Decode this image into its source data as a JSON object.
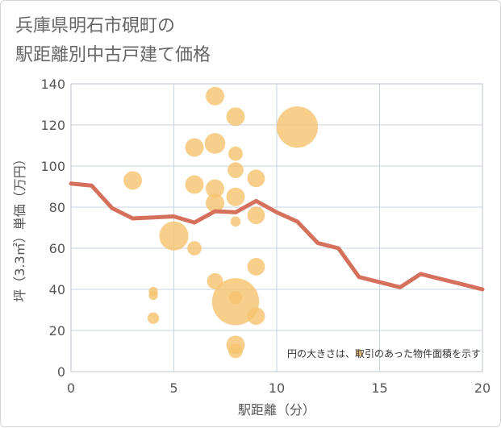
{
  "title": {
    "line1": "兵庫県明石市硯町の",
    "line2": "駅距離別中古戸建て価格"
  },
  "note": "円の大きさは、取引のあった物件面積を示す",
  "colors": {
    "bubble": "#f5c36e",
    "line": "#d4705c",
    "grid": "#c9d3e0",
    "plot_border": "#b8c4d2"
  },
  "chart_data": {
    "type": "scatter",
    "xlabel": "駅距離（分）",
    "ylabel": "坪（3.3㎡）単価（万円）",
    "xlim": [
      0,
      20
    ],
    "ylim": [
      0,
      140
    ],
    "x_ticks": [
      "0",
      "5",
      "10",
      "15",
      "20"
    ],
    "y_ticks": [
      "0",
      "20",
      "40",
      "60",
      "80",
      "100",
      "120",
      "140"
    ],
    "bubbles": [
      {
        "x": 3,
        "y": 93,
        "size": 2
      },
      {
        "x": 4,
        "y": 39,
        "size": 0.5
      },
      {
        "x": 4,
        "y": 37,
        "size": 0.5
      },
      {
        "x": 4,
        "y": 26,
        "size": 0.8
      },
      {
        "x": 5,
        "y": 66,
        "size": 5
      },
      {
        "x": 6,
        "y": 109,
        "size": 2
      },
      {
        "x": 6,
        "y": 91,
        "size": 2
      },
      {
        "x": 6,
        "y": 60,
        "size": 1.2
      },
      {
        "x": 7,
        "y": 134,
        "size": 2
      },
      {
        "x": 7,
        "y": 111,
        "size": 2.5
      },
      {
        "x": 7,
        "y": 89,
        "size": 2
      },
      {
        "x": 7,
        "y": 82,
        "size": 2
      },
      {
        "x": 7,
        "y": 44,
        "size": 1.5
      },
      {
        "x": 8,
        "y": 124,
        "size": 2
      },
      {
        "x": 8,
        "y": 106,
        "size": 1.2
      },
      {
        "x": 8,
        "y": 98,
        "size": 1.5
      },
      {
        "x": 8,
        "y": 85,
        "size": 2
      },
      {
        "x": 8,
        "y": 73,
        "size": 0.6
      },
      {
        "x": 8,
        "y": 34,
        "size": 13
      },
      {
        "x": 8,
        "y": 36,
        "size": 1
      },
      {
        "x": 8,
        "y": 13,
        "size": 2
      },
      {
        "x": 8,
        "y": 10,
        "size": 1.2
      },
      {
        "x": 9,
        "y": 94,
        "size": 1.8
      },
      {
        "x": 9,
        "y": 76,
        "size": 1.8
      },
      {
        "x": 9,
        "y": 51,
        "size": 1.8
      },
      {
        "x": 9,
        "y": 27,
        "size": 1.8
      },
      {
        "x": 11,
        "y": 119,
        "size": 10
      },
      {
        "x": 14,
        "y": 9,
        "size": 0.3
      }
    ],
    "series": [
      {
        "name": "平均坪単価",
        "x": [
          0,
          1,
          2,
          3,
          4,
          5,
          6,
          7,
          8,
          9,
          10,
          11,
          12,
          13,
          14,
          15,
          16,
          17,
          18,
          19,
          20
        ],
        "values": [
          91.5,
          90.5,
          79.5,
          74.5,
          75,
          75.5,
          72.5,
          78,
          77.5,
          83,
          77.5,
          73,
          62.5,
          60,
          46,
          43.5,
          41,
          47.5,
          45,
          42.5,
          40
        ]
      }
    ]
  }
}
